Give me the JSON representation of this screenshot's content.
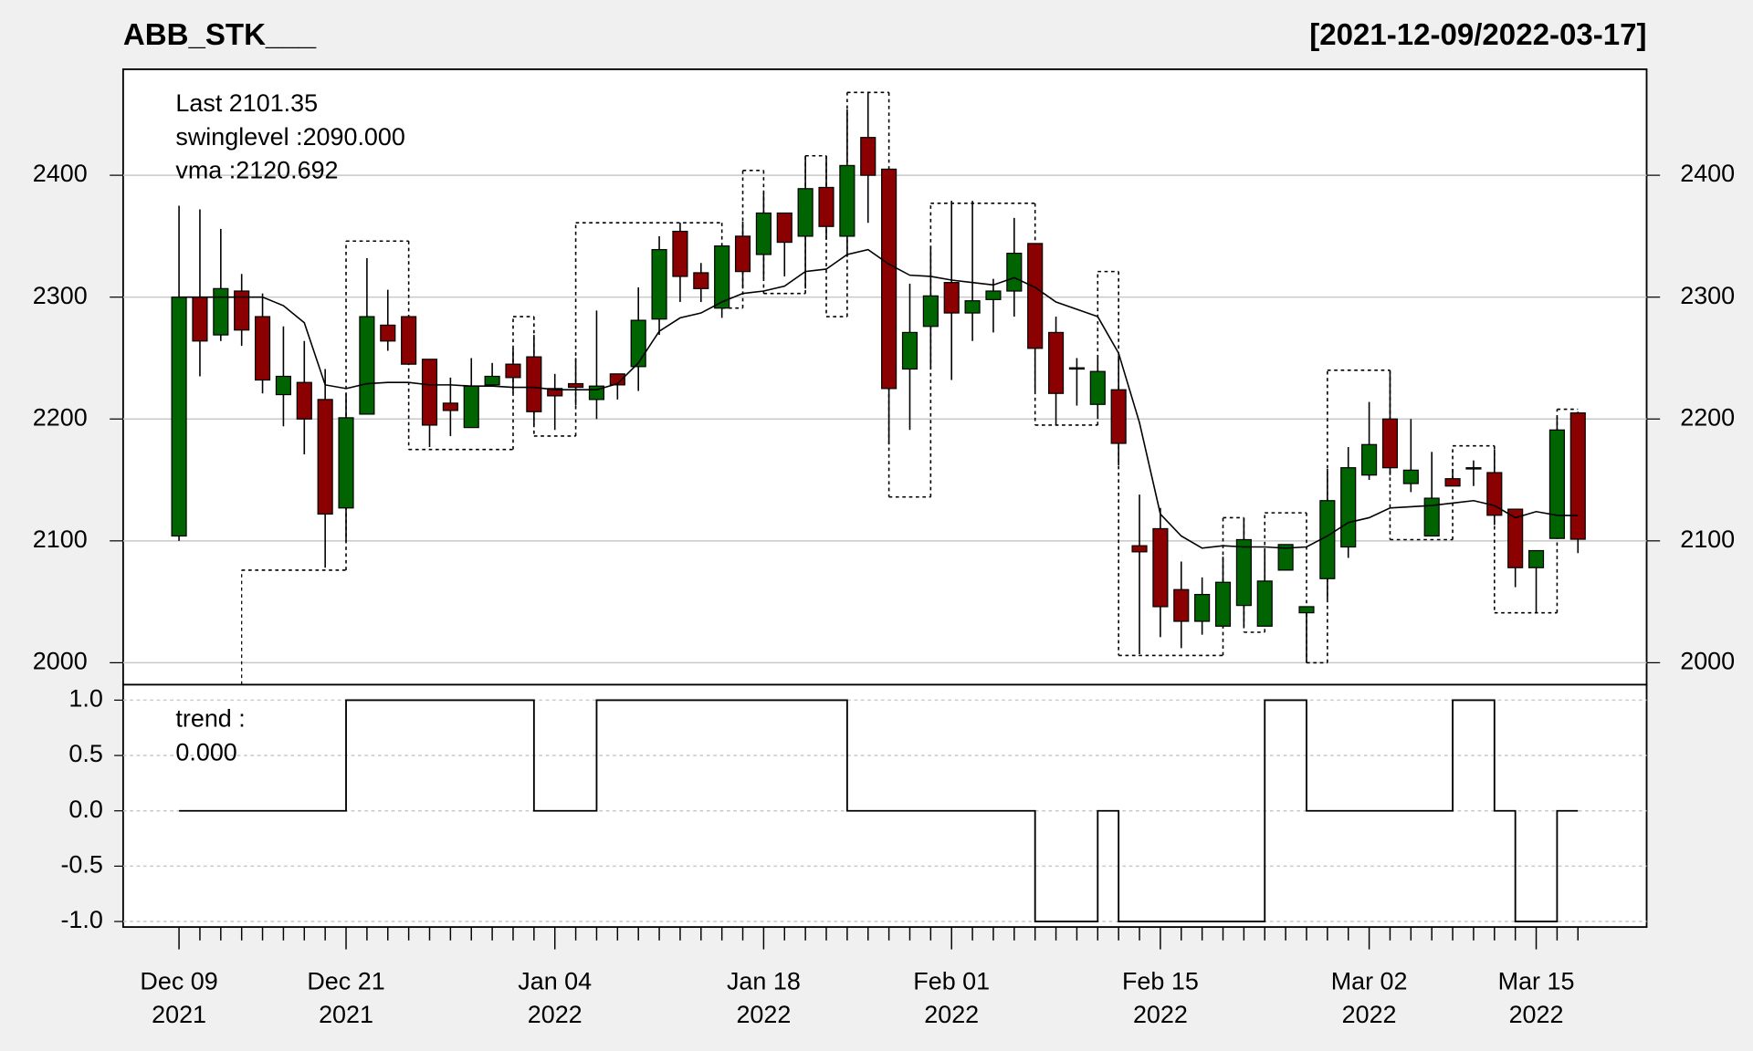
{
  "chart_data": [
    {
      "type": "candlestick",
      "title": "ABB_STK___",
      "subtitle": "[2021-12-09/2022-03-17]",
      "legend": [
        "Last 2101.35",
        "swinglevel :2090.000",
        "vma :2120.692"
      ],
      "legend_colors": [
        "#8b0000",
        "#000000",
        "#000000"
      ],
      "up_color": "#006400",
      "down_color": "#8b0000",
      "categories": [
        [
          "Dec 09",
          "2021"
        ],
        null,
        null,
        null,
        null,
        null,
        null,
        null,
        [
          "Dec 21",
          "2021"
        ],
        null,
        null,
        null,
        null,
        null,
        null,
        null,
        null,
        null,
        [
          "Jan 04",
          "2022"
        ],
        null,
        null,
        null,
        null,
        null,
        null,
        null,
        null,
        null,
        [
          "Jan 18",
          "2022"
        ],
        null,
        null,
        null,
        null,
        null,
        null,
        null,
        null,
        [
          "Feb 01",
          "2022"
        ],
        null,
        null,
        null,
        null,
        null,
        null,
        null,
        null,
        null,
        [
          "Feb 15",
          "2022"
        ],
        null,
        null,
        null,
        null,
        null,
        null,
        null,
        null,
        null,
        [
          "Mar 02",
          "2022"
        ],
        null,
        null,
        null,
        null,
        null,
        null,
        null,
        [
          "Mar 15",
          "2022"
        ],
        null,
        null
      ],
      "open": [
        2104,
        2300,
        2269,
        2305,
        2284,
        2220,
        2230,
        2216,
        2127,
        2204,
        2277,
        2284,
        2249,
        2213,
        2193,
        2228,
        2245,
        2251,
        2225,
        2229,
        2216,
        2237,
        2243,
        2282,
        2354,
        2320,
        2291,
        2350,
        2335,
        2369,
        2350,
        2390,
        2350,
        2431,
        2405,
        2241,
        2276,
        2312,
        2287,
        2298,
        2305,
        2344,
        2271,
        2242,
        2212,
        2224,
        2096,
        2110,
        2060,
        2034,
        2030,
        2047,
        2030,
        2076,
        2041,
        2069,
        2095,
        2154,
        2200,
        2147,
        2104,
        2151,
        2159,
        2156,
        2126,
        2078,
        2102,
        2205
      ],
      "high": [
        2375,
        2372,
        2356,
        2319,
        2303,
        2276,
        2264,
        2241,
        2221,
        2332,
        2306,
        2284,
        2249,
        2234,
        2250,
        2246,
        2258,
        2269,
        2237,
        2250,
        2289,
        2237,
        2308,
        2350,
        2361,
        2328,
        2342,
        2362,
        2386,
        2369,
        2416,
        2416,
        2454,
        2468,
        2405,
        2311,
        2342,
        2379,
        2379,
        2315,
        2365,
        2344,
        2284,
        2250,
        2252,
        2252,
        2138,
        2127,
        2083,
        2070,
        2087,
        2119,
        2094,
        2097,
        2046,
        2159,
        2177,
        2214,
        2239,
        2200,
        2173,
        2159,
        2166,
        2175,
        2126,
        2092,
        2202,
        2206
      ],
      "low": [
        2100,
        2235,
        2264,
        2260,
        2221,
        2194,
        2171,
        2078,
        2100,
        2204,
        2256,
        2245,
        2177,
        2186,
        2193,
        2228,
        2221,
        2195,
        2191,
        2211,
        2200,
        2216,
        2223,
        2269,
        2296,
        2296,
        2283,
        2307,
        2315,
        2317,
        2307,
        2347,
        2333,
        2361,
        2179,
        2191,
        2241,
        2232,
        2264,
        2271,
        2284,
        2223,
        2195,
        2211,
        2200,
        2162,
        2007,
        2021,
        2012,
        2023,
        2030,
        2030,
        2030,
        2076,
        2000,
        2052,
        2086,
        2150,
        2154,
        2140,
        2104,
        2145,
        2145,
        2113,
        2062,
        2041,
        2102,
        2090
      ],
      "close": [
        2300,
        2264,
        2307,
        2273,
        2232,
        2235,
        2200,
        2122,
        2201,
        2284,
        2264,
        2245,
        2195,
        2207,
        2227,
        2235,
        2234,
        2206,
        2219,
        2226,
        2227,
        2228,
        2281,
        2339,
        2317,
        2307,
        2342,
        2321,
        2369,
        2345,
        2389,
        2358,
        2408,
        2400,
        2225,
        2271,
        2301,
        2287,
        2297,
        2305,
        2336,
        2258,
        2221,
        2241,
        2239,
        2180,
        2091,
        2046,
        2034,
        2056,
        2066,
        2101,
        2067,
        2097,
        2046,
        2133,
        2160,
        2179,
        2160,
        2158,
        2135,
        2145,
        2160,
        2121,
        2078,
        2092,
        2191,
        2101.35
      ],
      "vma": [
        2300,
        2300,
        2300,
        2300,
        2300,
        2293,
        2279,
        2228,
        2225,
        2229,
        2230,
        2230,
        2228,
        2228,
        2227,
        2227,
        2226,
        2226,
        2224,
        2224,
        2224,
        2229,
        2246,
        2272,
        2283,
        2287,
        2296,
        2303,
        2305,
        2309,
        2321,
        2323,
        2335,
        2339,
        2327,
        2318,
        2317,
        2314,
        2312,
        2310,
        2316,
        2308,
        2296,
        2290,
        2284,
        2254,
        2197,
        2122,
        2104,
        2094,
        2096,
        2095,
        2095,
        2094,
        2095,
        2104,
        2115,
        2119,
        2127,
        2128,
        2129,
        2131,
        2133,
        2129,
        2119,
        2124,
        2121,
        2120.692
      ],
      "swing_bins": [
        3,
        8,
        11,
        16,
        17,
        19,
        26,
        27,
        28,
        30,
        31,
        32,
        34,
        36,
        41,
        44,
        45,
        50,
        51,
        52,
        54,
        55,
        58,
        61,
        63,
        66,
        67
      ],
      "swing_levels": [
        2076,
        2346,
        2175,
        2284,
        2186,
        2361,
        2291,
        2404,
        2303,
        2416,
        2284,
        2468,
        2136,
        2377,
        2195,
        2321,
        2006,
        2119,
        2025,
        2123,
        2000,
        2240,
        2101,
        2178,
        2041,
        2208
      ],
      "ylim": [
        1982,
        2487
      ],
      "yticks": [
        2000,
        2100,
        2200,
        2300,
        2400
      ],
      "grid": true
    },
    {
      "type": "step",
      "legend": [
        "trend :",
        "0.000"
      ],
      "values": [
        0,
        0,
        0,
        0,
        0,
        0,
        0,
        0,
        1,
        1,
        1,
        1,
        1,
        1,
        1,
        1,
        1,
        0,
        0,
        0,
        1,
        1,
        1,
        1,
        1,
        1,
        1,
        1,
        1,
        1,
        1,
        1,
        0,
        0,
        0,
        0,
        0,
        0,
        0,
        0,
        0,
        -1,
        -1,
        -1,
        0,
        -1,
        -1,
        -1,
        -1,
        -1,
        -1,
        -1,
        1,
        1,
        0,
        0,
        0,
        0,
        0,
        0,
        0,
        1,
        1,
        0,
        -1,
        -1,
        0,
        0
      ],
      "ylim": [
        -1.05,
        1.14
      ],
      "yticks": [
        {
          "value": 1,
          "label": "1.0"
        },
        0.5,
        {
          "value": 0,
          "label": "0.0"
        },
        -0.5,
        {
          "value": -1,
          "label": "-1.0"
        }
      ],
      "grid": true
    }
  ]
}
